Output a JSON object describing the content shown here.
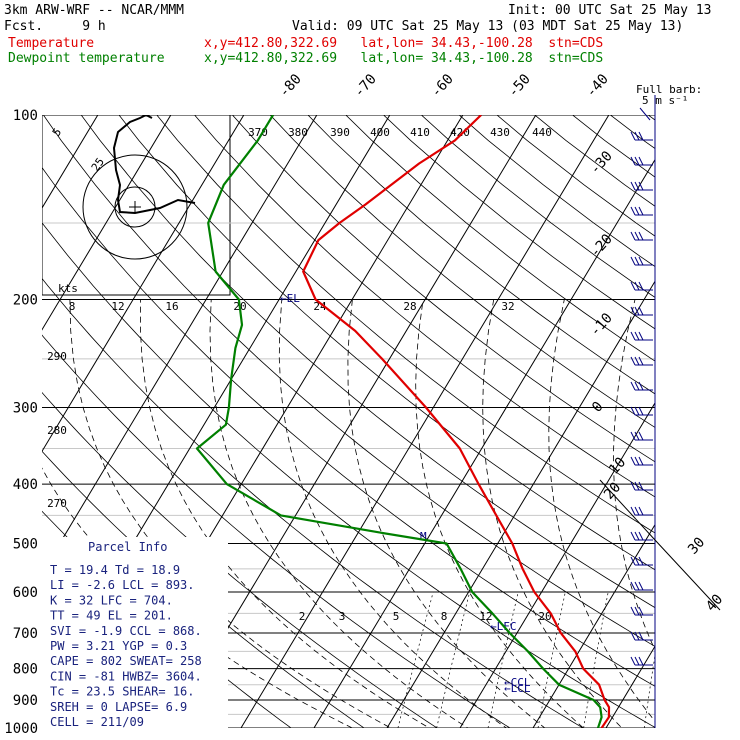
{
  "header": {
    "model": "3km ARW-WRF -- NCAR/MMM",
    "init": "Init: 00 UTC Sat 25 May 13",
    "fcst": "Fcst.     9 h",
    "valid": "Valid: 09 UTC Sat 25 May 13 (03 MDT Sat 25 May 13)",
    "temp_label": "Temperature",
    "temp_loc": "x,y=412.80,322.69   lat,lon= 34.43,-100.28  stn=CDS",
    "dew_label": "Dewpoint temperature",
    "dew_loc": "x,y=412.80,322.69   lat,lon= 34.43,-100.28  stn=CDS",
    "barb_legend": "Full barb:",
    "barb_unit": "5 m s⁻¹"
  },
  "colors": {
    "temperature": "#e00000",
    "dewpoint": "#008000",
    "parcel_text": "#1a237e",
    "barbs": "#000080"
  },
  "chart_data": {
    "type": "line",
    "chart_kind": "skew-T log-P sounding",
    "pressure_ticks": [
      "100",
      "200",
      "300",
      "400",
      "500",
      "600",
      "700",
      "800",
      "900",
      "1000"
    ],
    "isotherm_labels": [
      "-80",
      "-70",
      "-60",
      "-50",
      "-40",
      "-30",
      "-20",
      "-10",
      "0",
      "10",
      "20",
      "30",
      "40"
    ],
    "theta_labels": [
      "370",
      "380",
      "390",
      "400",
      "410",
      "420",
      "430",
      "440",
      "290",
      "280",
      "270"
    ],
    "mixing_ratio_labels": [
      "2",
      "3",
      "5",
      "8",
      "12",
      "20"
    ],
    "hodograph_speed_labels": [
      "8",
      "12",
      "16",
      "20",
      "24",
      "28",
      "32"
    ],
    "hodograph_ring_labels": [
      "5",
      "25",
      "kts"
    ],
    "level_marks": [
      "EL",
      "LFC",
      "CCL",
      "LCL",
      "M"
    ],
    "series": [
      {
        "name": "Temperature",
        "points": [
          [
            1000,
            19.4
          ],
          [
            960,
            19.5
          ],
          [
            925,
            18.7
          ],
          [
            900,
            17.5
          ],
          [
            850,
            15.5
          ],
          [
            800,
            12.0
          ],
          [
            750,
            9.5
          ],
          [
            700,
            6.0
          ],
          [
            650,
            3.0
          ],
          [
            600,
            -1.0
          ],
          [
            550,
            -4.5
          ],
          [
            500,
            -8.0
          ],
          [
            450,
            -12.5
          ],
          [
            400,
            -17.5
          ],
          [
            350,
            -23.0
          ],
          [
            300,
            -31.0
          ],
          [
            250,
            -41.0
          ],
          [
            225,
            -47.0
          ],
          [
            200,
            -55.0
          ],
          [
            180,
            -59.0
          ],
          [
            160,
            -59.5
          ],
          [
            150,
            -58.0
          ],
          [
            140,
            -56.0
          ],
          [
            120,
            -52.0
          ],
          [
            110,
            -49.0
          ],
          [
            100,
            -47.5
          ]
        ]
      },
      {
        "name": "Dewpoint temperature",
        "points": [
          [
            1000,
            18.9
          ],
          [
            960,
            18.5
          ],
          [
            925,
            17.5
          ],
          [
            900,
            16.0
          ],
          [
            850,
            10.0
          ],
          [
            800,
            6.5
          ],
          [
            750,
            3.0
          ],
          [
            700,
            -1.0
          ],
          [
            650,
            -5.0
          ],
          [
            600,
            -9.5
          ],
          [
            550,
            -13.0
          ],
          [
            500,
            -17.0
          ],
          [
            480,
            -27.0
          ],
          [
            450,
            -42.0
          ],
          [
            400,
            -52.0
          ],
          [
            350,
            -59.0
          ],
          [
            320,
            -57.0
          ],
          [
            300,
            -58.0
          ],
          [
            270,
            -60.0
          ],
          [
            240,
            -62.0
          ],
          [
            220,
            -63.0
          ],
          [
            200,
            -65.5
          ],
          [
            180,
            -71.0
          ],
          [
            150,
            -76.0
          ],
          [
            130,
            -77.0
          ],
          [
            110,
            -76.0
          ],
          [
            100,
            -76.0
          ]
        ]
      }
    ]
  },
  "parcel_info": {
    "title": "Parcel Info",
    "rows": [
      "T  =    19.4  Td =  18.9",
      "LI =    -2.6  LCL =  893.",
      "K  =      32  LFC =  704.",
      "TT =      49  EL  =  201.",
      "SVI =   -1.9  CCL =  868.",
      "PW =    3.21  YGP =   0.3",
      "CAPE =   802  SWEAT=  258",
      "CIN =    -81  HWBZ= 3604.",
      "Tc =    23.5  SHEAR=   16.",
      "SREH =     0  LAPSE=   6.9",
      "CELL = 211/09"
    ]
  }
}
